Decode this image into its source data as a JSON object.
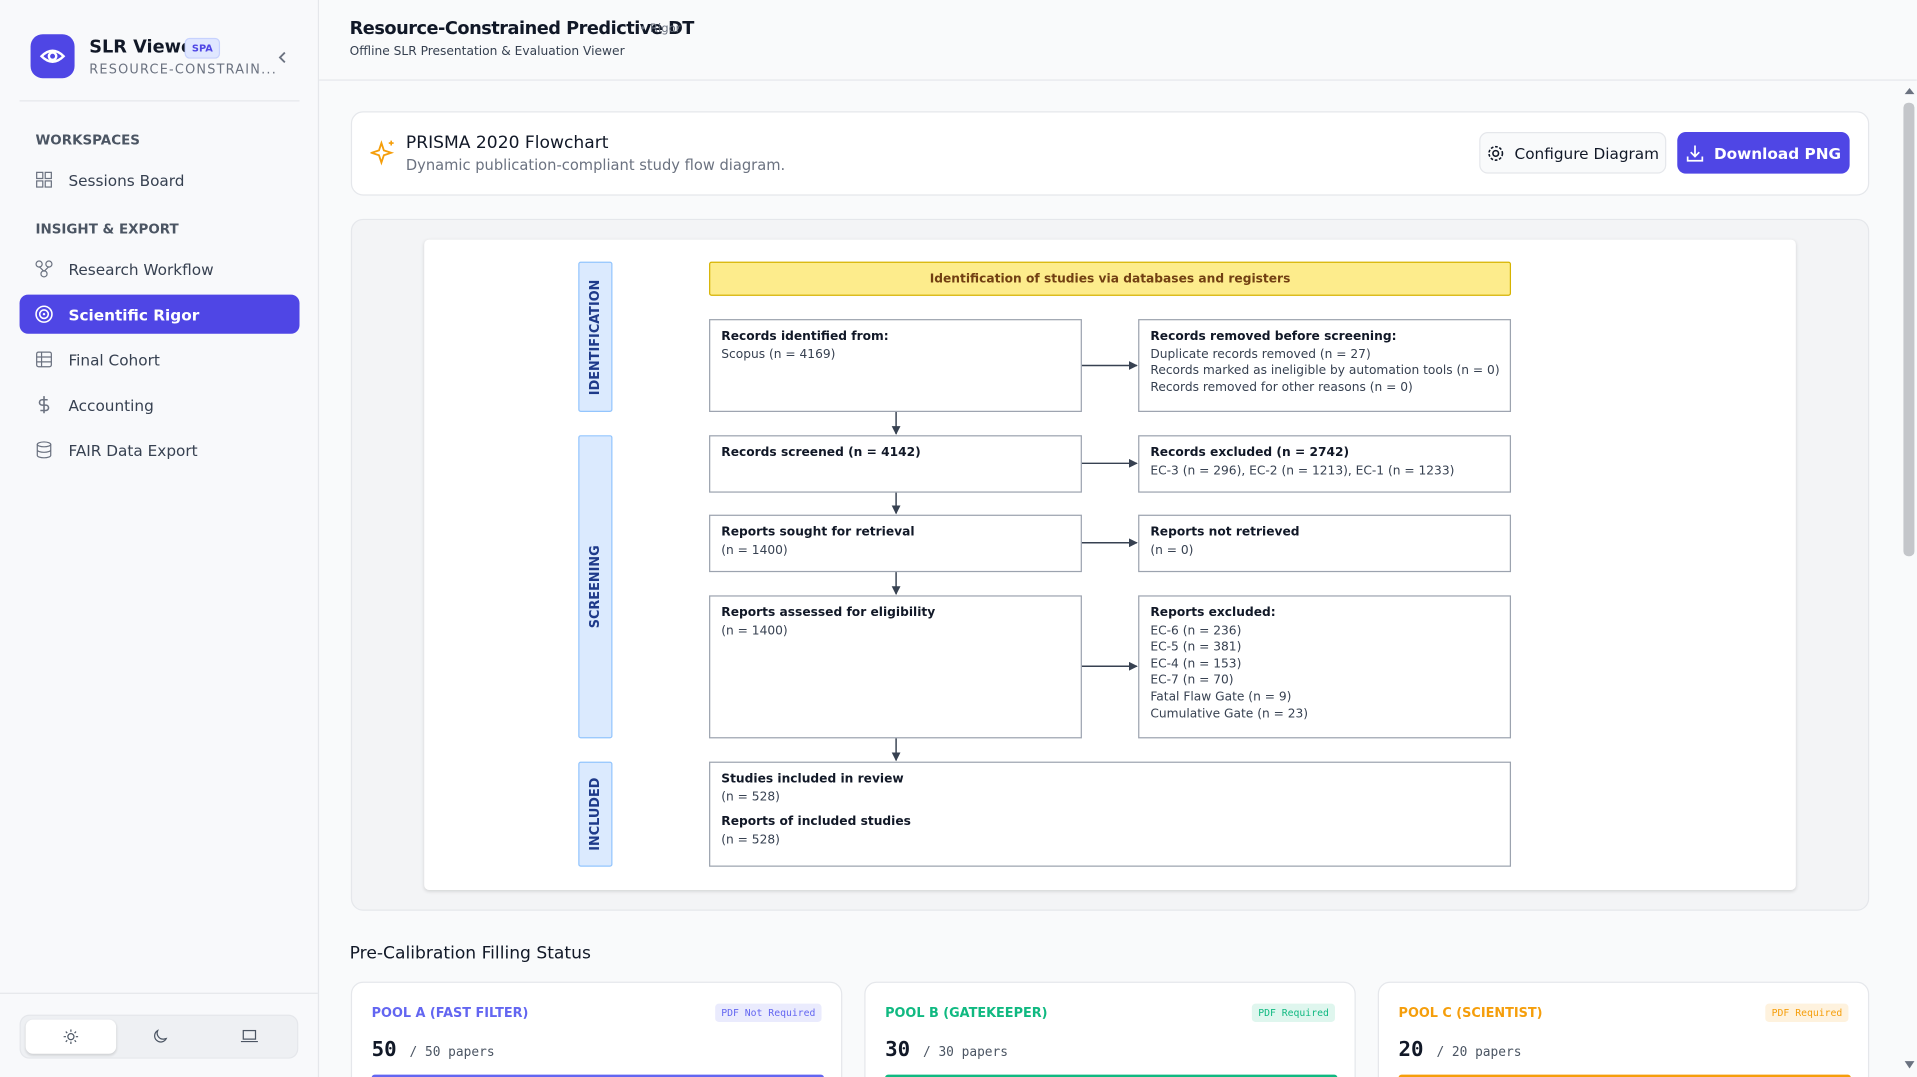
{
  "sidebar": {
    "app_name": "SLR Viewer",
    "badge": "SPA",
    "project": "RESOURCE-CONSTRAIN...",
    "sections": [
      {
        "title": "WORKSPACES",
        "items": [
          "Sessions Board"
        ]
      },
      {
        "title": "INSIGHT & EXPORT",
        "items": [
          "Research Workflow",
          "Scientific Rigor",
          "Final Cohort",
          "Accounting",
          "FAIR Data Export"
        ]
      }
    ]
  },
  "header": {
    "title": "Resource-Constrained Predictive DT",
    "tag": "• Rigor",
    "subtitle": "Offline SLR Presentation & Evaluation Viewer"
  },
  "card": {
    "title": "PRISMA 2020 Flowchart",
    "subtitle": "Dynamic publication-compliant study flow diagram.",
    "buttons": [
      "Configure Diagram",
      "Download PNG"
    ]
  },
  "flowchart": {
    "phases": [
      "IDENTIFICATION",
      "SCREENING",
      "INCLUDED"
    ],
    "banner": "Identification of studies via databases and registers",
    "left_boxes": [
      {
        "sections": [
          {
            "title": "Records identified from:",
            "lines": [
              "Scopus (n = 4169)"
            ]
          }
        ]
      },
      {
        "sections": [
          {
            "title": "Records screened (n = 4142)",
            "lines": []
          }
        ]
      },
      {
        "sections": [
          {
            "title": "Reports sought for retrieval",
            "lines": [
              "(n = 1400)"
            ]
          }
        ]
      },
      {
        "sections": [
          {
            "title": "Reports assessed for eligibility",
            "lines": [
              "(n = 1400)"
            ]
          }
        ]
      },
      {
        "sections": [
          {
            "title": "Studies included in review",
            "lines": [
              "(n = 528)"
            ]
          },
          {
            "title": "Reports of included studies",
            "lines": [
              "(n = 528)"
            ]
          }
        ]
      }
    ],
    "right_boxes": [
      {
        "sections": [
          {
            "title": "Records removed before screening:",
            "lines": [
              "Duplicate records removed (n = 27)",
              "Records marked as ineligible by automation tools (n = 0)",
              "Records removed for other reasons (n = 0)"
            ]
          }
        ]
      },
      {
        "sections": [
          {
            "title": "Records excluded (n = 2742)",
            "lines": [
              "EC-3 (n = 296), EC-2 (n = 1213), EC-1 (n = 1233)"
            ]
          }
        ]
      },
      {
        "sections": [
          {
            "title": "Reports not retrieved",
            "lines": [
              "(n = 0)"
            ]
          }
        ]
      },
      {
        "sections": [
          {
            "title": "Reports excluded:",
            "lines": [
              "EC-6 (n = 236)",
              "EC-5 (n = 381)",
              "EC-4 (n = 153)",
              "EC-7 (n = 70)",
              "Fatal Flaw Gate (n = 9)",
              "Cumulative Gate (n = 23)"
            ]
          }
        ]
      }
    ]
  },
  "status": {
    "title": "Pre-Calibration Filling Status",
    "pools": [
      {
        "name": "POOL A (FAST FILTER)",
        "badge": "PDF Not Required",
        "count": 50,
        "total": "/ 50 papers",
        "color": "#6366f1"
      },
      {
        "name": "POOL B (GATEKEEPER)",
        "badge": "PDF Required",
        "count": 30,
        "total": "/ 30 papers",
        "color": "#10b981"
      },
      {
        "name": "POOL C (SCIENTIST)",
        "badge": "PDF Required",
        "count": 20,
        "total": "/ 20 papers",
        "color": "#f59e0b"
      }
    ]
  }
}
